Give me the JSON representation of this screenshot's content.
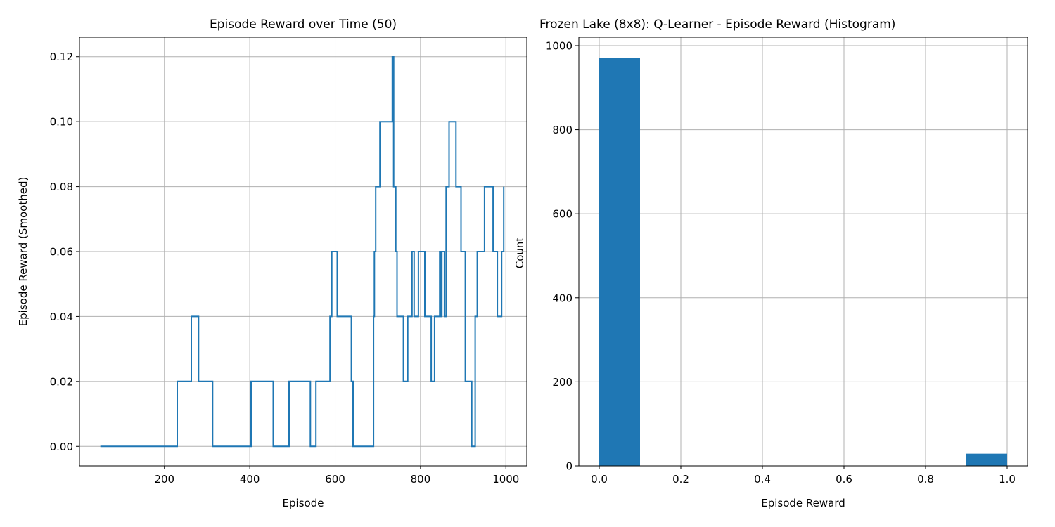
{
  "colors": {
    "series": "#1f77b4",
    "grid": "#b0b0b0",
    "axis": "#000000"
  },
  "chart_data": [
    {
      "type": "line",
      "title": "Episode Reward over Time (50)",
      "xlabel": "Episode",
      "ylabel": "Episode Reward (Smoothed)",
      "xlim": [
        1,
        1049
      ],
      "ylim": [
        -0.006,
        0.126
      ],
      "xticks": [
        200,
        400,
        600,
        800,
        1000
      ],
      "xtick_labels": [
        "200",
        "400",
        "600",
        "800",
        "1000"
      ],
      "yticks": [
        0,
        0.02,
        0.04,
        0.06,
        0.08,
        0.1,
        0.12
      ],
      "ytick_labels": [
        "0.00",
        "0.02",
        "0.04",
        "0.06",
        "0.08",
        "0.10",
        "0.12"
      ],
      "grid": true,
      "step": true,
      "series": [
        {
          "x": [
            50,
            230,
            263,
            280,
            313,
            403,
            455,
            492,
            542,
            555,
            588,
            592,
            605,
            638,
            642,
            690,
            692,
            695,
            705,
            734,
            737,
            742,
            745,
            750,
            760,
            770,
            780,
            785,
            795,
            810,
            825,
            833,
            845,
            848,
            850,
            856,
            860,
            867,
            883,
            895,
            905,
            920,
            928,
            933,
            950,
            970,
            980,
            990,
            995
          ],
          "y": [
            0.0,
            0.02,
            0.04,
            0.02,
            0.0,
            0.02,
            0.0,
            0.02,
            0.0,
            0.02,
            0.04,
            0.06,
            0.04,
            0.02,
            0.0,
            0.04,
            0.06,
            0.08,
            0.1,
            0.12,
            0.08,
            0.06,
            0.04,
            0.04,
            0.02,
            0.04,
            0.06,
            0.04,
            0.06,
            0.04,
            0.02,
            0.04,
            0.06,
            0.04,
            0.06,
            0.04,
            0.08,
            0.1,
            0.08,
            0.06,
            0.02,
            0.0,
            0.04,
            0.06,
            0.08,
            0.06,
            0.04,
            0.06,
            0.08
          ]
        }
      ]
    },
    {
      "type": "bar",
      "title": "Frozen Lake (8x8): Q-Learner - Episode Reward (Histogram)",
      "xlabel": "Episode Reward",
      "ylabel": "Count",
      "xlim": [
        -0.05,
        1.05
      ],
      "ylim": [
        0,
        1020
      ],
      "xticks": [
        0.0,
        0.2,
        0.4,
        0.6,
        0.8,
        1.0
      ],
      "xtick_labels": [
        "0.0",
        "0.2",
        "0.4",
        "0.6",
        "0.8",
        "1.0"
      ],
      "yticks": [
        0,
        200,
        400,
        600,
        800,
        1000
      ],
      "ytick_labels": [
        "0",
        "200",
        "400",
        "600",
        "800",
        "1000"
      ],
      "grid": true,
      "bins": [
        {
          "from": 0.0,
          "to": 0.1,
          "count": 971
        },
        {
          "from": 0.9,
          "to": 1.0,
          "count": 29
        }
      ]
    }
  ]
}
